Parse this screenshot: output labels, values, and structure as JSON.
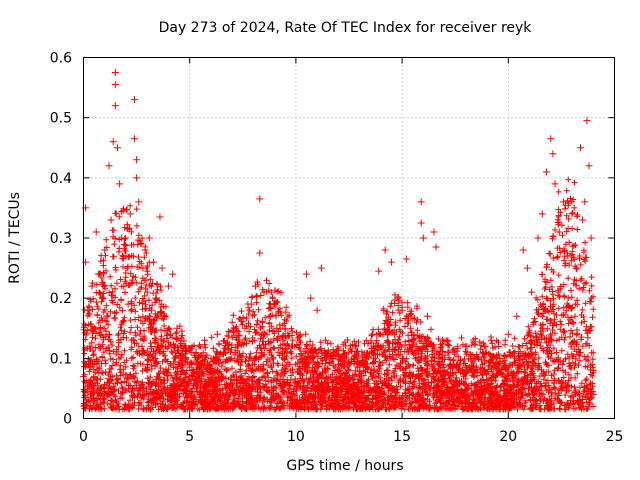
{
  "chart_data": {
    "type": "scatter",
    "title": "Day 273 of 2024, Rate Of TEC Index for receiver reyk",
    "xlabel": "GPS time / hours",
    "ylabel": "ROTI / TECUs",
    "xlim": [
      0,
      25
    ],
    "ylim": [
      0,
      0.6
    ],
    "xticks": [
      0,
      5,
      10,
      15,
      20,
      25
    ],
    "xtick_labels": [
      "0",
      "5",
      "10",
      "15",
      "20",
      "25"
    ],
    "yticks": [
      0,
      0.1,
      0.2,
      0.3,
      0.4,
      0.5,
      0.6
    ],
    "ytick_labels": [
      "0",
      "0.1",
      "0.2",
      "0.3",
      "0.4",
      "0.5",
      "0.6"
    ],
    "grid": true,
    "marker": "+",
    "series": [
      {
        "name": "ROTI",
        "color": "#ff0000",
        "points": [
          [
            0.0,
            0.07
          ],
          [
            0.1,
            0.35
          ],
          [
            0.1,
            0.26
          ],
          [
            0.2,
            0.18
          ],
          [
            0.3,
            0.12
          ],
          [
            0.4,
            0.22
          ],
          [
            0.5,
            0.09
          ],
          [
            0.6,
            0.31
          ],
          [
            0.7,
            0.24
          ],
          [
            0.8,
            0.15
          ],
          [
            0.9,
            0.2
          ],
          [
            1.0,
            0.28
          ],
          [
            1.1,
            0.17
          ],
          [
            1.2,
            0.42
          ],
          [
            1.3,
            0.33
          ],
          [
            1.4,
            0.46
          ],
          [
            1.5,
            0.575
          ],
          [
            1.5,
            0.555
          ],
          [
            1.5,
            0.52
          ],
          [
            1.6,
            0.45
          ],
          [
            1.7,
            0.39
          ],
          [
            1.8,
            0.3
          ],
          [
            1.9,
            0.22
          ],
          [
            2.0,
            0.27
          ],
          [
            2.1,
            0.19
          ],
          [
            2.2,
            0.34
          ],
          [
            2.3,
            0.23
          ],
          [
            2.4,
            0.53
          ],
          [
            2.4,
            0.465
          ],
          [
            2.5,
            0.43
          ],
          [
            2.5,
            0.4
          ],
          [
            2.6,
            0.36
          ],
          [
            2.7,
            0.29
          ],
          [
            2.8,
            0.25
          ],
          [
            2.9,
            0.28
          ],
          [
            3.0,
            0.21
          ],
          [
            3.1,
            0.3
          ],
          [
            3.2,
            0.18
          ],
          [
            3.3,
            0.26
          ],
          [
            3.4,
            0.2
          ],
          [
            3.6,
            0.335
          ],
          [
            3.7,
            0.25
          ],
          [
            3.8,
            0.17
          ],
          [
            4.0,
            0.22
          ],
          [
            4.2,
            0.24
          ],
          [
            4.4,
            0.15
          ],
          [
            4.6,
            0.12
          ],
          [
            4.8,
            0.1
          ],
          [
            5.0,
            0.09
          ],
          [
            5.3,
            0.11
          ],
          [
            5.7,
            0.13
          ],
          [
            6.0,
            0.1
          ],
          [
            6.3,
            0.14
          ],
          [
            6.6,
            0.11
          ],
          [
            7.0,
            0.16
          ],
          [
            7.3,
            0.13
          ],
          [
            7.6,
            0.15
          ],
          [
            7.9,
            0.19
          ],
          [
            8.1,
            0.22
          ],
          [
            8.3,
            0.365
          ],
          [
            8.3,
            0.275
          ],
          [
            8.5,
            0.21
          ],
          [
            8.8,
            0.17
          ],
          [
            9.1,
            0.15
          ],
          [
            9.4,
            0.13
          ],
          [
            9.8,
            0.12
          ],
          [
            10.2,
            0.14
          ],
          [
            10.5,
            0.24
          ],
          [
            10.7,
            0.2
          ],
          [
            11.0,
            0.18
          ],
          [
            11.2,
            0.25
          ],
          [
            11.4,
            0.13
          ],
          [
            11.8,
            0.11
          ],
          [
            12.2,
            0.1
          ],
          [
            12.5,
            0.08
          ],
          [
            12.8,
            0.12
          ],
          [
            13.2,
            0.09
          ],
          [
            13.6,
            0.14
          ],
          [
            13.9,
            0.245
          ],
          [
            14.2,
            0.28
          ],
          [
            14.5,
            0.26
          ],
          [
            14.8,
            0.2
          ],
          [
            15.0,
            0.18
          ],
          [
            15.2,
            0.265
          ],
          [
            15.4,
            0.15
          ],
          [
            15.7,
            0.12
          ],
          [
            15.9,
            0.36
          ],
          [
            15.9,
            0.325
          ],
          [
            16.0,
            0.3
          ],
          [
            16.2,
            0.17
          ],
          [
            16.5,
            0.31
          ],
          [
            16.6,
            0.285
          ],
          [
            16.9,
            0.13
          ],
          [
            17.2,
            0.11
          ],
          [
            17.6,
            0.09
          ],
          [
            18.0,
            0.12
          ],
          [
            18.4,
            0.1
          ],
          [
            18.8,
            0.11
          ],
          [
            19.2,
            0.13
          ],
          [
            19.6,
            0.1
          ],
          [
            20.0,
            0.14
          ],
          [
            20.4,
            0.17
          ],
          [
            20.7,
            0.28
          ],
          [
            20.9,
            0.25
          ],
          [
            21.1,
            0.21
          ],
          [
            21.4,
            0.3
          ],
          [
            21.6,
            0.34
          ],
          [
            21.8,
            0.41
          ],
          [
            22.0,
            0.465
          ],
          [
            22.1,
            0.44
          ],
          [
            22.2,
            0.39
          ],
          [
            22.4,
            0.31
          ],
          [
            22.6,
            0.36
          ],
          [
            22.8,
            0.27
          ],
          [
            23.0,
            0.34
          ],
          [
            23.2,
            0.25
          ],
          [
            23.4,
            0.45
          ],
          [
            23.5,
            0.33
          ],
          [
            23.6,
            0.36
          ],
          [
            23.7,
            0.495
          ],
          [
            23.8,
            0.42
          ],
          [
            23.9,
            0.3
          ],
          [
            24.0,
            0.08
          ],
          [
            24.0,
            0.04
          ]
        ]
      }
    ]
  }
}
